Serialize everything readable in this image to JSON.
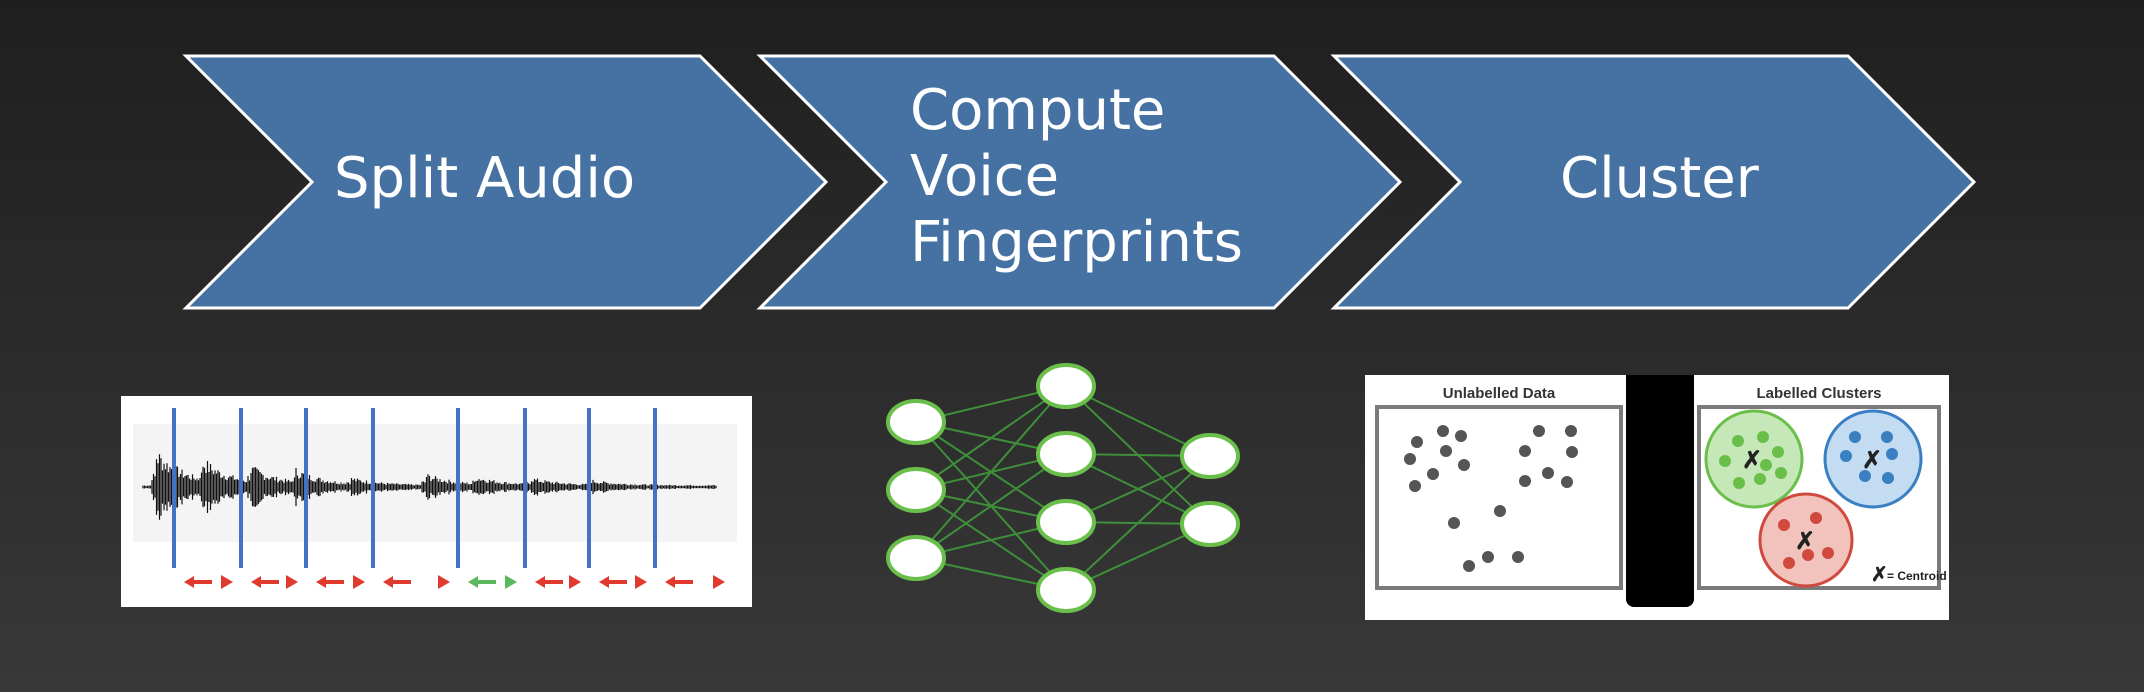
{
  "steps": [
    {
      "label": "Split Audio"
    },
    {
      "label": "Compute\nVoice\nFingerprints"
    },
    {
      "label": "Cluster"
    }
  ],
  "colors": {
    "chevron_fill": "#4672a3",
    "chevron_stroke": "#ffffff",
    "split_marker": "#4472c4",
    "arrow_red": "#e03a2f",
    "arrow_green": "#5cb85c",
    "nn_node": "#6abf4b",
    "cluster_green": "#6abf4b",
    "cluster_blue": "#3a7fc2",
    "cluster_red": "#d0493d"
  },
  "audio_segments": {
    "arrow_colors": [
      "red",
      "red",
      "red",
      "red",
      "green",
      "red",
      "red",
      "red",
      "green"
    ]
  },
  "neural_net": {
    "layers": [
      3,
      4,
      2
    ]
  },
  "cluster_panel": {
    "left_title": "Unlabelled Data",
    "right_title": "Labelled Clusters",
    "centroid_marker": "✗",
    "centroid_legend": "= Centroid"
  }
}
